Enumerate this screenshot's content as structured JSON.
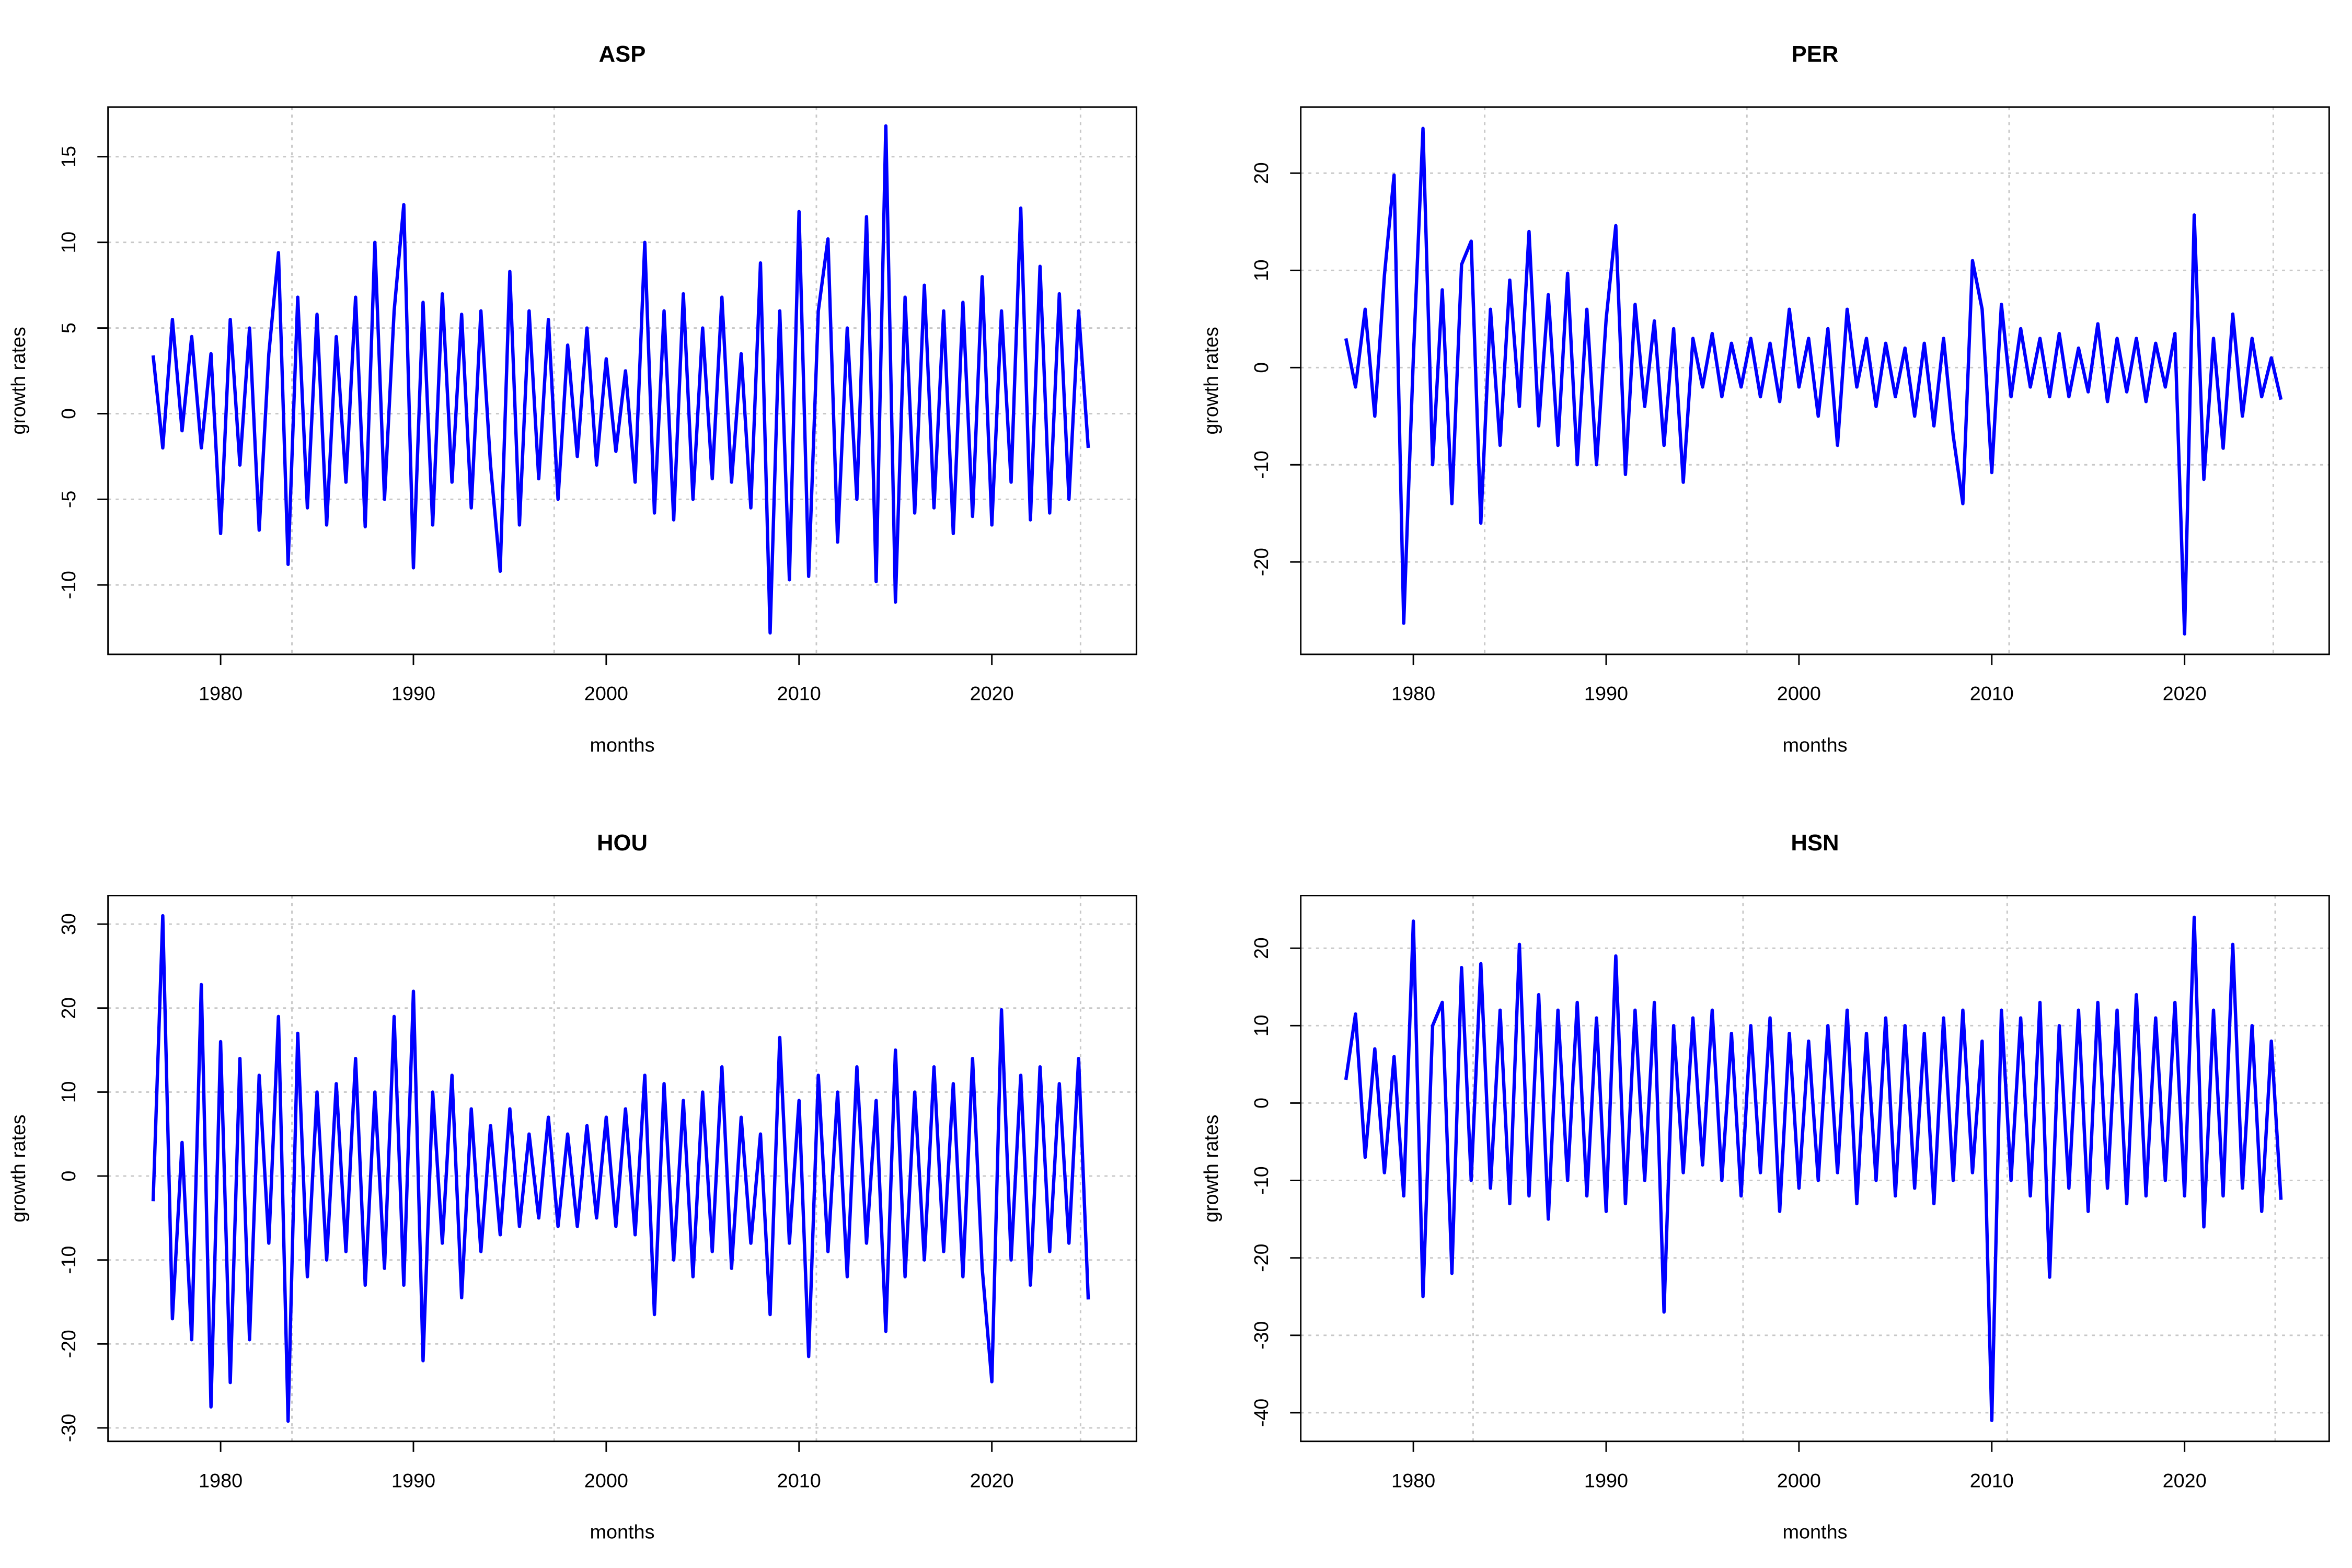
{
  "chart_data": [
    {
      "type": "line",
      "title": "ASP",
      "xlabel": "months",
      "ylabel": "growth rates",
      "grid": true,
      "xlim": [
        1974.16,
        2027.5
      ],
      "ylim": [
        -14.05,
        17.9
      ],
      "xticks": [
        1980,
        1990,
        2000,
        2010,
        2020
      ],
      "yticks": [
        -10,
        -5,
        0,
        5,
        10,
        15
      ],
      "xgrid": [
        1983.7,
        1997.3,
        2010.9,
        2024.6
      ],
      "x": [
        1976.5,
        1977,
        1977.5,
        1978,
        1978.5,
        1979,
        1979.5,
        1980,
        1980.5,
        1981,
        1981.5,
        1982,
        1982.5,
        1983,
        1983.5,
        1984,
        1984.5,
        1985,
        1985.5,
        1986,
        1986.5,
        1987,
        1987.5,
        1988,
        1988.5,
        1989,
        1989.5,
        1990,
        1990.5,
        1991,
        1991.5,
        1992,
        1992.5,
        1993,
        1993.5,
        1994,
        1994.5,
        1995,
        1995.5,
        1996,
        1996.5,
        1997,
        1997.5,
        1998,
        1998.5,
        1999,
        1999.5,
        2000,
        2000.5,
        2001,
        2001.5,
        2002,
        2002.5,
        2003,
        2003.5,
        2004,
        2004.5,
        2005,
        2005.5,
        2006,
        2006.5,
        2007,
        2007.5,
        2008,
        2008.5,
        2009,
        2009.5,
        2010,
        2010.5,
        2011,
        2011.5,
        2012,
        2012.5,
        2013,
        2013.5,
        2014,
        2014.5,
        2015,
        2015.5,
        2016,
        2016.5,
        2017,
        2017.5,
        2018,
        2018.5,
        2019,
        2019.5,
        2020,
        2020.5,
        2021,
        2021.5,
        2022,
        2022.5,
        2023,
        2023.5,
        2024,
        2024.5,
        2025
      ],
      "series": [
        {
          "color": "#0000ff",
          "values": [
            3.4,
            -2,
            5.5,
            -1,
            4.5,
            -2,
            3.5,
            -7,
            5.5,
            -3,
            5,
            -6.8,
            3.5,
            9.4,
            -8.8,
            6.8,
            -5.5,
            5.8,
            -6.5,
            4.5,
            -4,
            6.8,
            -6.6,
            10,
            -5,
            6,
            12.2,
            -9,
            6.5,
            -6.5,
            7,
            -4,
            5.8,
            -5.5,
            6,
            -3,
            -9.2,
            8.3,
            -6.5,
            6,
            -3.8,
            5.5,
            -5,
            4,
            -2.5,
            5,
            -3,
            3.2,
            -2.2,
            2.5,
            -4,
            10,
            -5.8,
            6,
            -6.2,
            7,
            -5,
            5,
            -3.8,
            6.8,
            -4,
            3.5,
            -5.5,
            8.8,
            -12.8,
            6,
            -9.7,
            11.8,
            -9.5,
            6,
            10.2,
            -7.5,
            5,
            -5,
            11.5,
            -9.8,
            16.8,
            -11,
            6.8,
            -5.8,
            7.5,
            -5.5,
            6,
            -7,
            6.5,
            -6,
            8,
            -6.5,
            6,
            -4,
            12,
            -6.2,
            8.6,
            -5.8,
            7,
            -5,
            6,
            -2
          ]
        }
      ]
    },
    {
      "type": "line",
      "title": "PER",
      "xlabel": "months",
      "ylabel": "growth rates",
      "grid": true,
      "xlim": [
        1974.16,
        2027.5
      ],
      "ylim": [
        -29.5,
        26.8
      ],
      "xticks": [
        1980,
        1990,
        2000,
        2010,
        2020
      ],
      "yticks": [
        -20,
        -10,
        0,
        10,
        20
      ],
      "xgrid": [
        1983.7,
        1997.3,
        2010.9,
        2024.6
      ],
      "x": [
        1976.5,
        1977,
        1977.5,
        1978,
        1978.5,
        1979,
        1979.5,
        1980,
        1980.5,
        1981,
        1981.5,
        1982,
        1982.5,
        1983,
        1983.5,
        1984,
        1984.5,
        1985,
        1985.5,
        1986,
        1986.5,
        1987,
        1987.5,
        1988,
        1988.5,
        1989,
        1989.5,
        1990,
        1990.5,
        1991,
        1991.5,
        1992,
        1992.5,
        1993,
        1993.5,
        1994,
        1994.5,
        1995,
        1995.5,
        1996,
        1996.5,
        1997,
        1997.5,
        1998,
        1998.5,
        1999,
        1999.5,
        2000,
        2000.5,
        2001,
        2001.5,
        2002,
        2002.5,
        2003,
        2003.5,
        2004,
        2004.5,
        2005,
        2005.5,
        2006,
        2006.5,
        2007,
        2007.5,
        2008,
        2008.5,
        2009,
        2009.5,
        2010,
        2010.5,
        2011,
        2011.5,
        2012,
        2012.5,
        2013,
        2013.5,
        2014,
        2014.5,
        2015,
        2015.5,
        2016,
        2016.5,
        2017,
        2017.5,
        2018,
        2018.5,
        2019,
        2019.5,
        2020,
        2020.5,
        2021,
        2021.5,
        2022,
        2022.5,
        2023,
        2023.5,
        2024,
        2024.5,
        2025
      ],
      "series": [
        {
          "color": "#0000ff",
          "values": [
            3,
            -2,
            6,
            -5,
            9.5,
            19.8,
            -26.3,
            1,
            24.6,
            -10,
            8,
            -14,
            10.6,
            13,
            -16,
            6,
            -8,
            9,
            -4,
            14,
            -6,
            7.5,
            -8,
            9.7,
            -10,
            6,
            -10,
            5,
            14.6,
            -11,
            6.5,
            -4,
            4.8,
            -8,
            4,
            -11.8,
            3,
            -2,
            3.5,
            -3,
            2.5,
            -2,
            3,
            -3,
            2.5,
            -3.5,
            6,
            -2,
            3,
            -5,
            4,
            -8,
            6,
            -2,
            3,
            -4,
            2.5,
            -3,
            2,
            -5,
            2.5,
            -6,
            3,
            -7,
            -14,
            11,
            6,
            -10.8,
            6.5,
            -3,
            4,
            -2,
            3,
            -3,
            3.5,
            -3,
            2,
            -2.5,
            4.5,
            -3.5,
            3,
            -2.5,
            3,
            -3.5,
            2.5,
            -2,
            3.5,
            -27.4,
            15.7,
            -11.5,
            3,
            -8.3,
            5.5,
            -5,
            3,
            -3,
            1,
            -3.3
          ]
        }
      ]
    },
    {
      "type": "line",
      "title": "HOU",
      "xlabel": "months",
      "ylabel": "growth rates",
      "grid": true,
      "xlim": [
        1974.16,
        2027.5
      ],
      "ylim": [
        -31.6,
        33.4
      ],
      "xticks": [
        1980,
        1990,
        2000,
        2010,
        2020
      ],
      "yticks": [
        -30,
        -20,
        -10,
        0,
        10,
        20,
        30
      ],
      "xgrid": [
        1983.7,
        1997.3,
        2010.9,
        2024.6
      ],
      "x": [
        1976.5,
        1977,
        1977.5,
        1978,
        1978.5,
        1979,
        1979.5,
        1980,
        1980.5,
        1981,
        1981.5,
        1982,
        1982.5,
        1983,
        1983.5,
        1984,
        1984.5,
        1985,
        1985.5,
        1986,
        1986.5,
        1987,
        1987.5,
        1988,
        1988.5,
        1989,
        1989.5,
        1990,
        1990.5,
        1991,
        1991.5,
        1992,
        1992.5,
        1993,
        1993.5,
        1994,
        1994.5,
        1995,
        1995.5,
        1996,
        1996.5,
        1997,
        1997.5,
        1998,
        1998.5,
        1999,
        1999.5,
        2000,
        2000.5,
        2001,
        2001.5,
        2002,
        2002.5,
        2003,
        2003.5,
        2004,
        2004.5,
        2005,
        2005.5,
        2006,
        2006.5,
        2007,
        2007.5,
        2008,
        2008.5,
        2009,
        2009.5,
        2010,
        2010.5,
        2011,
        2011.5,
        2012,
        2012.5,
        2013,
        2013.5,
        2014,
        2014.5,
        2015,
        2015.5,
        2016,
        2016.5,
        2017,
        2017.5,
        2018,
        2018.5,
        2019,
        2019.5,
        2020,
        2020.5,
        2021,
        2021.5,
        2022,
        2022.5,
        2023,
        2023.5,
        2024,
        2024.5,
        2025
      ],
      "series": [
        {
          "color": "#0000ff",
          "values": [
            -3,
            31,
            -17,
            4,
            -19.5,
            22.8,
            -27.5,
            16,
            -24.6,
            14,
            -19.5,
            12,
            -8,
            19,
            -29.2,
            17,
            -12,
            10,
            -10,
            11,
            -9,
            14,
            -13,
            10,
            -11,
            19,
            -13,
            22,
            -22,
            10,
            -8,
            12,
            -14.5,
            8,
            -9,
            6,
            -7,
            8,
            -6,
            5,
            -5,
            7,
            -6,
            5,
            -6,
            6,
            -5,
            7,
            -6,
            8,
            -7,
            12,
            -16.5,
            11,
            -10,
            9,
            -12,
            10,
            -9,
            13,
            -11,
            7,
            -8,
            5,
            -16.5,
            16.5,
            -8,
            9,
            -21.5,
            12,
            -9,
            10,
            -12,
            13,
            -8,
            9,
            -18.5,
            15,
            -12,
            10,
            -10,
            13,
            -9,
            11,
            -12,
            14,
            -11,
            -24.5,
            19.8,
            -10,
            12,
            -13,
            13,
            -9,
            11,
            -8,
            14,
            -14.7
          ]
        }
      ]
    },
    {
      "type": "line",
      "title": "HSN",
      "xlabel": "months",
      "ylabel": "growth rates",
      "grid": true,
      "xlim": [
        1974.16,
        2027.5
      ],
      "ylim": [
        -43.7,
        26.8
      ],
      "xticks": [
        1980,
        1990,
        2000,
        2010,
        2020
      ],
      "yticks": [
        -40,
        -30,
        -20,
        -10,
        0,
        10,
        20
      ],
      "xgrid": [
        1983.1,
        1997.1,
        2010.8,
        2024.7
      ],
      "x": [
        1976.5,
        1977,
        1977.5,
        1978,
        1978.5,
        1979,
        1979.5,
        1980,
        1980.5,
        1981,
        1981.5,
        1982,
        1982.5,
        1983,
        1983.5,
        1984,
        1984.5,
        1985,
        1985.5,
        1986,
        1986.5,
        1987,
        1987.5,
        1988,
        1988.5,
        1989,
        1989.5,
        1990,
        1990.5,
        1991,
        1991.5,
        1992,
        1992.5,
        1993,
        1993.5,
        1994,
        1994.5,
        1995,
        1995.5,
        1996,
        1996.5,
        1997,
        1997.5,
        1998,
        1998.5,
        1999,
        1999.5,
        2000,
        2000.5,
        2001,
        2001.5,
        2002,
        2002.5,
        2003,
        2003.5,
        2004,
        2004.5,
        2005,
        2005.5,
        2006,
        2006.5,
        2007,
        2007.5,
        2008,
        2008.5,
        2009,
        2009.5,
        2010,
        2010.5,
        2011,
        2011.5,
        2012,
        2012.5,
        2013,
        2013.5,
        2014,
        2014.5,
        2015,
        2015.5,
        2016,
        2016.5,
        2017,
        2017.5,
        2018,
        2018.5,
        2019,
        2019.5,
        2020,
        2020.5,
        2021,
        2021.5,
        2022,
        2022.5,
        2023,
        2023.5,
        2024,
        2024.5,
        2025
      ],
      "series": [
        {
          "color": "#0000ff",
          "values": [
            3,
            11.5,
            -7,
            7,
            -9,
            6,
            -12,
            23.5,
            -25,
            10,
            13,
            -22,
            17.5,
            -10,
            18,
            -11,
            12,
            -13,
            20.5,
            -12,
            14,
            -15,
            12,
            -10,
            13,
            -12,
            11,
            -14,
            19,
            -13,
            12,
            -10,
            13,
            -27,
            10,
            -9,
            11,
            -8,
            12,
            -10,
            9,
            -12,
            10,
            -9,
            11,
            -14,
            9,
            -11,
            8,
            -10,
            10,
            -9,
            12,
            -13,
            9,
            -10,
            11,
            -12,
            10,
            -11,
            9,
            -13,
            11,
            -10,
            12,
            -9,
            8,
            -41,
            12,
            -10,
            11,
            -12,
            13,
            -22.5,
            10,
            -11,
            12,
            -14,
            13,
            -11,
            12,
            -13,
            14,
            -12,
            11,
            -10,
            13,
            -12,
            24,
            -16,
            12,
            -12,
            20.5,
            -11,
            10,
            -14,
            8,
            -12.5
          ]
        }
      ]
    }
  ]
}
